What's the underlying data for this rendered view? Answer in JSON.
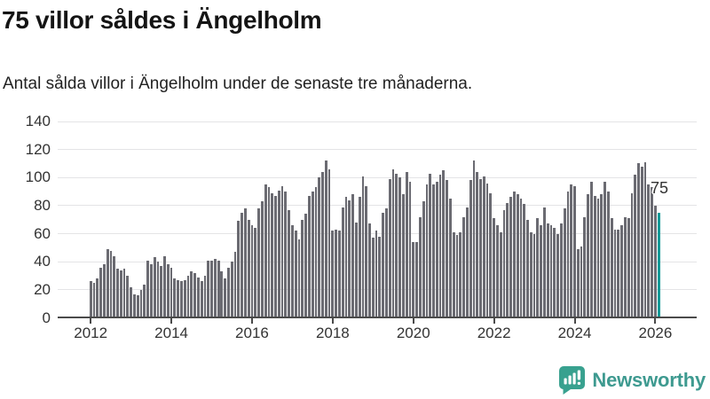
{
  "header": {
    "title": "75 villor såldes i Ängelholm",
    "subtitle": "Antal sålda villor i Ängelholm under de senaste tre månaderna."
  },
  "chart_data": {
    "type": "bar",
    "title": "75 villor såldes i Ängelholm",
    "subtitle": "Antal sålda villor i Ängelholm under de senaste tre månaderna.",
    "x_description": "Monthly rolling 3-month sales, Jan 2012 - Feb 2026",
    "x_tick_labels": [
      "2012",
      "2014",
      "2016",
      "2018",
      "2020",
      "2022",
      "2024",
      "2026"
    ],
    "y_ticks": [
      0,
      20,
      40,
      60,
      80,
      100,
      120,
      140
    ],
    "ylim": [
      0,
      140
    ],
    "grid": true,
    "legend": "none",
    "bar_color": "#6b6b72",
    "highlight_color": "#169a98",
    "highlight_index": 169,
    "annotation": {
      "text": "75",
      "value": 75
    },
    "values": [
      26,
      25,
      28,
      36,
      38,
      49,
      48,
      44,
      35,
      34,
      35,
      30,
      22,
      17,
      16,
      20,
      24,
      41,
      38,
      43,
      40,
      37,
      44,
      38,
      36,
      28,
      27,
      26,
      27,
      30,
      33,
      32,
      29,
      26,
      30,
      41,
      41,
      42,
      41,
      33,
      28,
      36,
      40,
      47,
      69,
      75,
      78,
      70,
      66,
      64,
      78,
      83,
      95,
      93,
      89,
      87,
      91,
      94,
      90,
      77,
      66,
      62,
      56,
      70,
      74,
      87,
      90,
      93,
      100,
      104,
      112,
      106,
      62,
      63,
      62,
      79,
      86,
      84,
      88,
      68,
      86,
      101,
      94,
      67,
      57,
      62,
      58,
      75,
      78,
      99,
      106,
      103,
      100,
      88,
      104,
      97,
      54,
      54,
      72,
      83,
      95,
      103,
      95,
      97,
      102,
      105,
      98,
      85,
      61,
      59,
      61,
      72,
      79,
      98,
      112,
      104,
      99,
      101,
      96,
      89,
      71,
      66,
      61,
      77,
      82,
      86,
      90,
      88,
      85,
      81,
      70,
      61,
      60,
      71,
      66,
      79,
      67,
      66,
      64,
      60,
      67,
      78,
      90,
      95,
      94,
      49,
      51,
      72,
      88,
      97,
      87,
      85,
      88,
      97,
      90,
      71,
      63,
      63,
      66,
      72,
      71,
      89,
      102,
      110,
      108,
      111,
      95,
      93,
      80,
      75
    ]
  },
  "footer": {
    "brand": "Newsworthy",
    "brand_color": "#3e9a90",
    "icon_color": "#38a18f"
  }
}
